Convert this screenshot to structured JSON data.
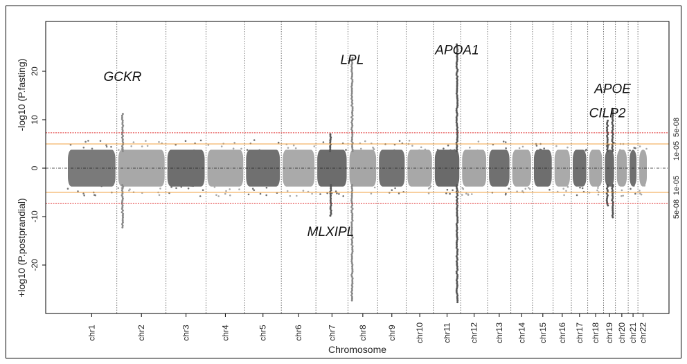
{
  "chart_data": {
    "type": "scatter",
    "subtype": "miami-plot",
    "title": "",
    "xlabel": "Chromosome",
    "ylabel_top": "-log10 (P.fasting)",
    "ylabel_bottom": "+log10 (P.postprandial)",
    "ylim": [
      -30,
      30
    ],
    "yticks": [
      20,
      10,
      0,
      -10,
      -20
    ],
    "ytick_labels": [
      "20",
      "10",
      "0",
      "-10",
      "-20"
    ],
    "grid": false,
    "chromosomes": [
      {
        "name": "chr1",
        "length": 249,
        "color": "#7a7a7a"
      },
      {
        "name": "chr2",
        "length": 243,
        "color": "#a8a8a8"
      },
      {
        "name": "chr3",
        "length": 198,
        "color": "#6e6e6e"
      },
      {
        "name": "chr4",
        "length": 191,
        "color": "#a8a8a8"
      },
      {
        "name": "chr5",
        "length": 181,
        "color": "#707070"
      },
      {
        "name": "chr6",
        "length": 171,
        "color": "#aaaaaa"
      },
      {
        "name": "chr7",
        "length": 159,
        "color": "#6c6c6c"
      },
      {
        "name": "chr8",
        "length": 146,
        "color": "#a6a6a6"
      },
      {
        "name": "chr9",
        "length": 141,
        "color": "#727272"
      },
      {
        "name": "chr10",
        "length": 135,
        "color": "#a8a8a8"
      },
      {
        "name": "chr11",
        "length": 135,
        "color": "#6a6a6a"
      },
      {
        "name": "chr12",
        "length": 133,
        "color": "#a6a6a6"
      },
      {
        "name": "chr13",
        "length": 115,
        "color": "#707070"
      },
      {
        "name": "chr14",
        "length": 107,
        "color": "#a8a8a8"
      },
      {
        "name": "chr15",
        "length": 102,
        "color": "#6e6e6e"
      },
      {
        "name": "chr16",
        "length": 90,
        "color": "#aaaaaa"
      },
      {
        "name": "chr17",
        "length": 81,
        "color": "#707070"
      },
      {
        "name": "chr18",
        "length": 78,
        "color": "#a8a8a8"
      },
      {
        "name": "chr19",
        "length": 59,
        "color": "#6c6c6c"
      },
      {
        "name": "chr20",
        "length": 63,
        "color": "#a6a6a6"
      },
      {
        "name": "chr21",
        "length": 48,
        "color": "#707070"
      },
      {
        "name": "chr22",
        "length": 51,
        "color": "#a8a8a8"
      }
    ],
    "thresholds": [
      {
        "value": 7.3,
        "color": "#e03030",
        "label": "5e-08"
      },
      {
        "value": 5,
        "color": "#f0a040",
        "label": "1e-05"
      },
      {
        "value": -5,
        "color": "#f0a040",
        "label": "1e-05"
      },
      {
        "value": -7.3,
        "color": "#e03030",
        "label": "5e-08"
      }
    ],
    "peaks": [
      {
        "chr": "chr2",
        "pos": 28,
        "fasting": 11.5,
        "postprandial": 12.5,
        "label": "GCKR",
        "label_y": 18
      },
      {
        "chr": "chr7",
        "pos": 73,
        "fasting": 7.0,
        "postprandial": 9.8,
        "label": "MLXIPL",
        "label_y": -14
      },
      {
        "chr": "chr8",
        "pos": 20,
        "fasting": 22.8,
        "postprandial": 27.5,
        "label": "LPL",
        "label_y": 21.5
      },
      {
        "chr": "chr11",
        "pos": 117,
        "fasting": 25.8,
        "postprandial": 28.0,
        "label": "APOA1",
        "label_y": 23.5
      },
      {
        "chr": "chr19",
        "pos": 19,
        "fasting": 9.8,
        "postprandial": 8.0,
        "label": "CILP2",
        "label_y": 10.5
      },
      {
        "chr": "chr19",
        "pos": 45,
        "fasting": 12.3,
        "postprandial": 10.3,
        "label": "APOE",
        "label_y": 15.5
      }
    ]
  }
}
